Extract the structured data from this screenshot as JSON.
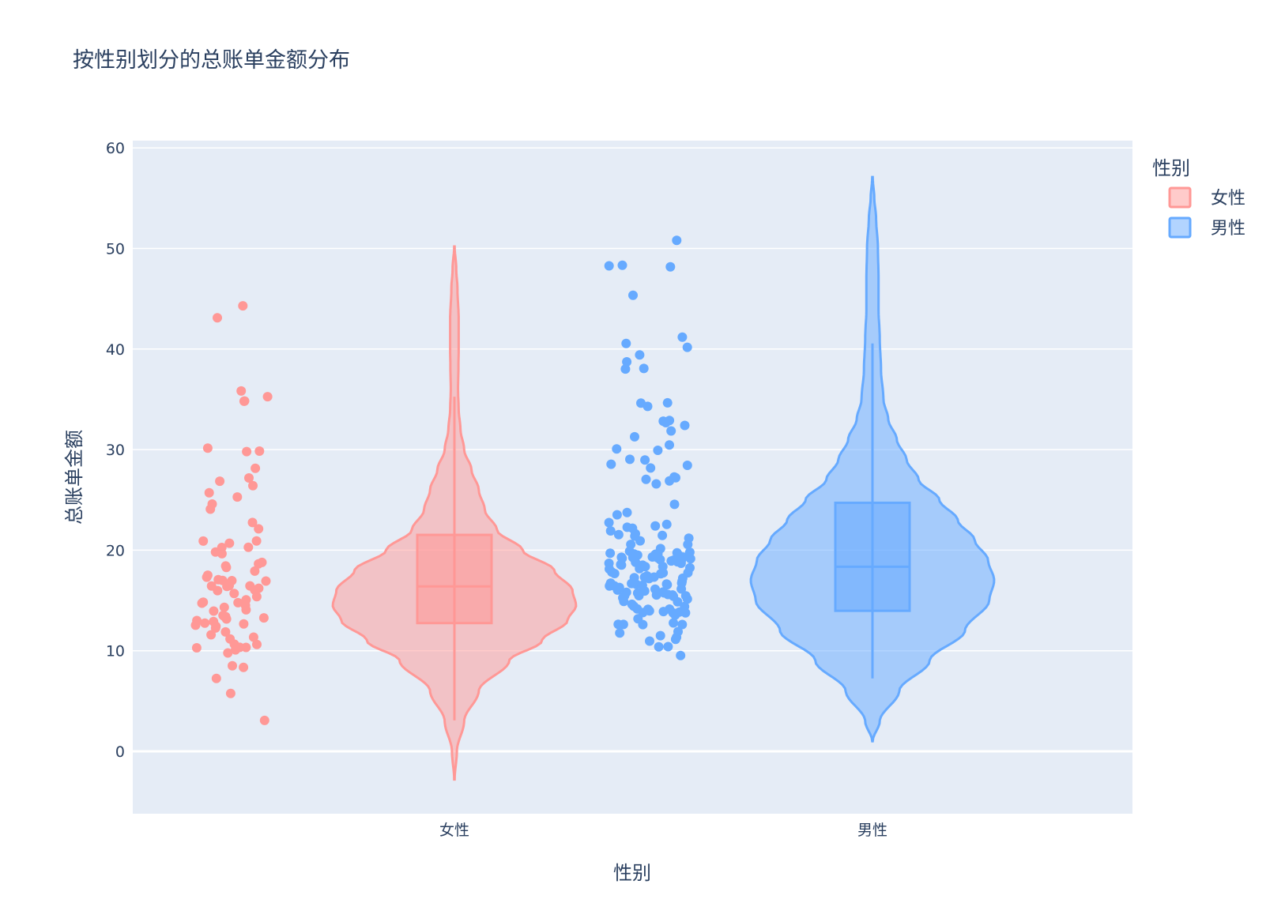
{
  "chart_data": {
    "type": "violin",
    "title": "按性别划分的总账单金额分布",
    "xlabel": "性别",
    "ylabel": "总账单金额",
    "categories": [
      "女性",
      "男性"
    ],
    "ylim": [
      -6,
      60.5
    ],
    "yticks": [
      0,
      10,
      20,
      30,
      40,
      50,
      60
    ],
    "grid": true,
    "legend": {
      "title": "性别",
      "placement": "top-right"
    },
    "background_color": "#e5ecf6",
    "series": [
      {
        "name": "女性",
        "color": "#ff9896",
        "violin_range": [
          -2.8,
          50.2
        ],
        "box": {
          "min": 3.07,
          "q1": 12.75,
          "median": 16.4,
          "q3": 21.52,
          "max": 35.26
        },
        "density": [
          [
            -2.8,
            0.002
          ],
          [
            0,
            0.02
          ],
          [
            3,
            0.08
          ],
          [
            6,
            0.2
          ],
          [
            9,
            0.45
          ],
          [
            11,
            0.72
          ],
          [
            13,
            0.93
          ],
          [
            14.5,
            1.0
          ],
          [
            16,
            0.97
          ],
          [
            18,
            0.82
          ],
          [
            20,
            0.56
          ],
          [
            22,
            0.35
          ],
          [
            24,
            0.25
          ],
          [
            26,
            0.2
          ],
          [
            28,
            0.14
          ],
          [
            30,
            0.08
          ],
          [
            32,
            0.05
          ],
          [
            34,
            0.035
          ],
          [
            36,
            0.03
          ],
          [
            38,
            0.033
          ],
          [
            40,
            0.035
          ],
          [
            43,
            0.035
          ],
          [
            46,
            0.025
          ],
          [
            48,
            0.015
          ],
          [
            50.2,
            0.002
          ]
        ],
        "points": [
          44.3,
          43.11,
          35.83,
          35.26,
          34.83,
          34.81,
          30.14,
          29.85,
          29.8,
          28.15,
          27.18,
          26.86,
          26.41,
          25.71,
          25.29,
          24.59,
          24.08,
          22.75,
          22.12,
          20.92,
          20.9,
          20.69,
          20.29,
          20.27,
          19.82,
          19.65,
          18.78,
          18.64,
          18.43,
          18.29,
          17.92,
          17.51,
          17.31,
          17.07,
          16.99,
          16.97,
          16.93,
          16.47,
          16.45,
          16.43,
          16.4,
          16.21,
          16.04,
          15.98,
          15.69,
          15.38,
          15.06,
          14.83,
          14.78,
          14.73,
          14.52,
          14.31,
          14.07,
          13.94,
          13.51,
          13.42,
          13.39,
          13.27,
          13.16,
          13.0,
          12.9,
          12.74,
          12.66,
          12.54,
          12.43,
          12.26,
          11.87,
          11.59,
          11.35,
          11.17,
          10.65,
          10.63,
          10.34,
          10.33,
          10.29,
          10.09,
          9.78,
          8.51,
          8.35,
          7.25,
          5.75,
          3.07
        ]
      },
      {
        "name": "男性",
        "color": "#66aaff",
        "violin_range": [
          1.0,
          57.1
        ],
        "box": {
          "min": 7.25,
          "q1": 13.97,
          "median": 18.35,
          "q3": 24.71,
          "max": 40.55
        },
        "density": [
          [
            1,
            0.002
          ],
          [
            3,
            0.06
          ],
          [
            6,
            0.22
          ],
          [
            9,
            0.47
          ],
          [
            12,
            0.76
          ],
          [
            15,
            0.96
          ],
          [
            17,
            1.0
          ],
          [
            19,
            0.95
          ],
          [
            21,
            0.84
          ],
          [
            23,
            0.7
          ],
          [
            25,
            0.55
          ],
          [
            27,
            0.38
          ],
          [
            29,
            0.28
          ],
          [
            31,
            0.2
          ],
          [
            33,
            0.13
          ],
          [
            35,
            0.09
          ],
          [
            38,
            0.07
          ],
          [
            41,
            0.06
          ],
          [
            44,
            0.05
          ],
          [
            47,
            0.05
          ],
          [
            50,
            0.045
          ],
          [
            53,
            0.03
          ],
          [
            55,
            0.015
          ],
          [
            57.1,
            0.002
          ]
        ]
      }
    ]
  }
}
